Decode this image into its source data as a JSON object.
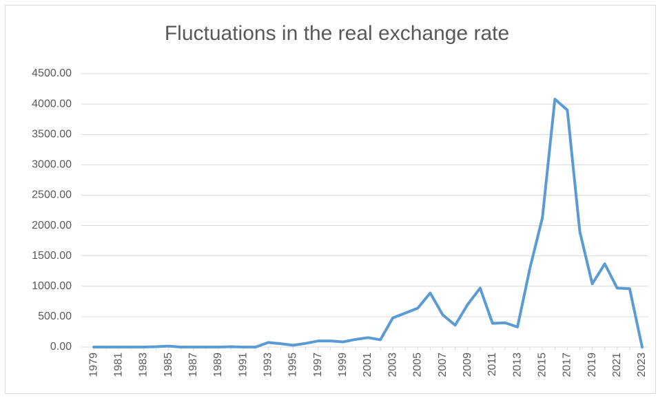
{
  "chart_data": {
    "type": "line",
    "title": "Fluctuations in the real exchange rate",
    "categories": [
      "1979",
      null,
      "1981",
      null,
      "1983",
      null,
      "1985",
      null,
      "1987",
      null,
      "1989",
      null,
      "1991",
      null,
      "1993",
      null,
      "1995",
      null,
      "1997",
      null,
      "1999",
      null,
      "2001",
      null,
      "2003",
      null,
      "2005",
      null,
      "2007",
      null,
      "2009",
      null,
      "2011",
      null,
      "2013",
      null,
      "2015",
      null,
      "2017",
      null,
      "2019",
      null,
      "2021",
      null,
      "2023"
    ],
    "series": [
      {
        "color": "#5b9bd5",
        "values": [
          0,
          0,
          0,
          0,
          0,
          5,
          15,
          0,
          0,
          0,
          0,
          5,
          0,
          0,
          75,
          55,
          30,
          60,
          100,
          100,
          85,
          125,
          155,
          120,
          480,
          560,
          640,
          890,
          530,
          360,
          700,
          970,
          390,
          400,
          330,
          1300,
          2130,
          4080,
          3900,
          1900,
          1040,
          1370,
          970,
          960,
          0
        ]
      }
    ],
    "ylim": [
      0,
      4500
    ],
    "yticks": [
      {
        "value": 0,
        "label": "0.00"
      },
      {
        "value": 500,
        "label": "500.00"
      },
      {
        "value": 1000,
        "label": "1000.00"
      },
      {
        "value": 1500,
        "label": "1500.00"
      },
      {
        "value": 2000,
        "label": "2000.00"
      },
      {
        "value": 2500,
        "label": "2500.00"
      },
      {
        "value": 3000,
        "label": "3000.00"
      },
      {
        "value": 3500,
        "label": "3500.00"
      },
      {
        "value": 4000,
        "label": "4000.00"
      },
      {
        "value": 4500,
        "label": "4500.00"
      }
    ],
    "grid": true
  }
}
